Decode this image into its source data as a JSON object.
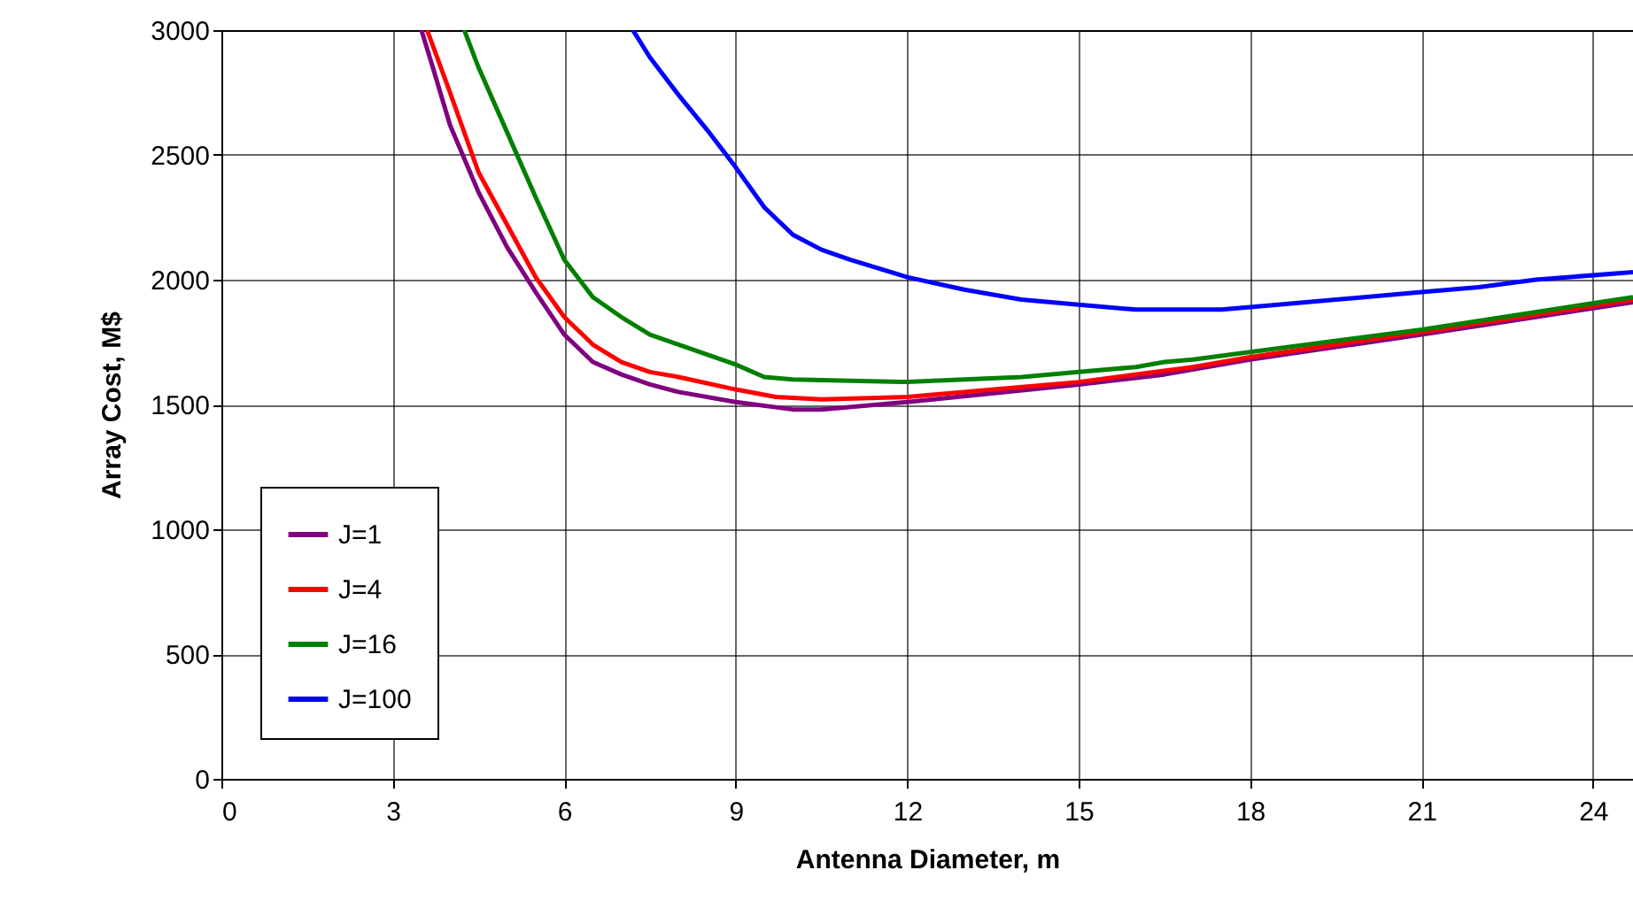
{
  "chart_data": {
    "type": "line",
    "xlabel": "Antenna Diameter, m",
    "ylabel": "Array Cost, M$",
    "xlim": [
      0,
      24.7
    ],
    "xticks": [
      0,
      3,
      6,
      9,
      12,
      15,
      18,
      21,
      24
    ],
    "ylim": [
      0,
      3000
    ],
    "yticks": [
      0,
      500,
      1000,
      1500,
      2000,
      2500,
      3000
    ],
    "grid": true,
    "legend": "bottom left",
    "marker": "none",
    "line_style": "solid",
    "series": [
      {
        "name": "J=1",
        "color": "#800080",
        "x": [
          3.5,
          3.7,
          4,
          4.5,
          5,
          5.5,
          6,
          6.5,
          7,
          7.5,
          8,
          9,
          10,
          10.5,
          12,
          15,
          16.5,
          18,
          21,
          24.7
        ],
        "values": [
          3000,
          2850,
          2620,
          2350,
          2130,
          1950,
          1780,
          1670,
          1620,
          1580,
          1550,
          1510,
          1480,
          1480,
          1510,
          1580,
          1620,
          1680,
          1780,
          1910
        ]
      },
      {
        "name": "J=4",
        "color": "#ff0000",
        "x": [
          3.6,
          4,
          4.5,
          5,
          5.5,
          6,
          6.5,
          7,
          7.5,
          8,
          9,
          9.7,
          10.5,
          12,
          15,
          17,
          18,
          21,
          24.7
        ],
        "values": [
          3000,
          2750,
          2430,
          2220,
          2010,
          1850,
          1740,
          1670,
          1630,
          1610,
          1560,
          1530,
          1520,
          1530,
          1590,
          1650,
          1690,
          1790,
          1920
        ]
      },
      {
        "name": "J=16",
        "color": "#008000",
        "x": [
          4.25,
          4.5,
          5,
          5.5,
          6,
          6.5,
          7,
          7.5,
          8,
          9,
          9.5,
          10,
          12,
          14,
          15,
          16,
          16.5,
          17,
          18,
          21,
          24.7
        ],
        "values": [
          3000,
          2850,
          2590,
          2330,
          2080,
          1930,
          1850,
          1780,
          1740,
          1660,
          1610,
          1600,
          1590,
          1610,
          1630,
          1650,
          1670,
          1680,
          1710,
          1800,
          1930
        ]
      },
      {
        "name": "J=100",
        "color": "#0000ff",
        "x": [
          7.2,
          7.5,
          8,
          8.5,
          9,
          9.5,
          10,
          10.5,
          11,
          12,
          13,
          14,
          15,
          16,
          17.5,
          18,
          20,
          21,
          22,
          23,
          24.7
        ],
        "values": [
          3000,
          2890,
          2740,
          2600,
          2450,
          2290,
          2180,
          2120,
          2080,
          2010,
          1960,
          1920,
          1900,
          1880,
          1880,
          1890,
          1930,
          1950,
          1970,
          2000,
          2030
        ]
      }
    ]
  }
}
